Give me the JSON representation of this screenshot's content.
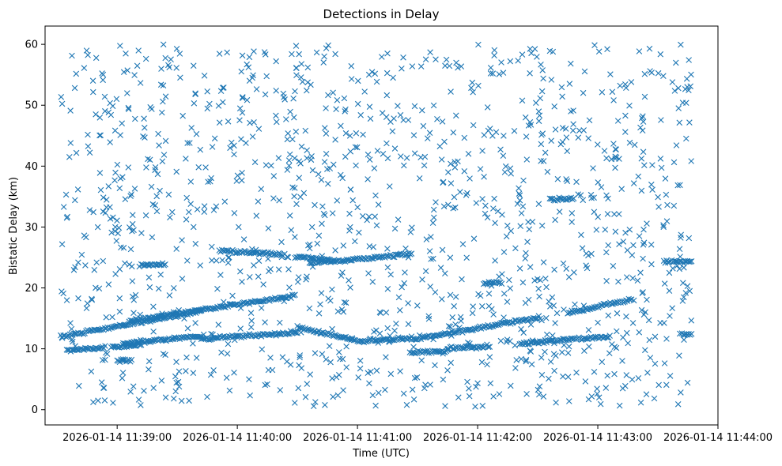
{
  "chart_data": {
    "type": "scatter",
    "title": "Detections in Delay",
    "xlabel": "Time (UTC)",
    "ylabel": "Bistatic Delay (km)",
    "marker": "x",
    "color": "#1f77b4",
    "xlim_minutes": [
      -0.6,
      5.0
    ],
    "ylim": [
      -2.5,
      63
    ],
    "x_ticks": [
      {
        "value": 0,
        "label": "2026-01-14 11:39:00"
      },
      {
        "value": 1,
        "label": "2026-01-14 11:40:00"
      },
      {
        "value": 2,
        "label": "2026-01-14 11:41:00"
      },
      {
        "value": 3,
        "label": "2026-01-14 11:42:00"
      },
      {
        "value": 4,
        "label": "2026-01-14 11:43:00"
      },
      {
        "value": 5,
        "label": "2026-01-14 11:44:00"
      }
    ],
    "y_ticks": [
      {
        "value": 0,
        "label": "0"
      },
      {
        "value": 10,
        "label": "10"
      },
      {
        "value": 20,
        "label": "20"
      },
      {
        "value": 30,
        "label": "30"
      },
      {
        "value": 40,
        "label": "40"
      },
      {
        "value": 50,
        "label": "50"
      },
      {
        "value": 60,
        "label": "60"
      }
    ],
    "x_unit": "minutes after 2026-01-14 11:39:00",
    "tracks": [
      {
        "x": [
          -0.47,
          0.7
        ],
        "y": [
          12.0,
          16.2
        ]
      },
      {
        "x": [
          0.05,
          0.7
        ],
        "y": [
          10.9,
          12.1
        ]
      },
      {
        "x": [
          0.7,
          1.5
        ],
        "y": [
          11.7,
          12.6
        ]
      },
      {
        "x": [
          0.1,
          1.48
        ],
        "y": [
          14.6,
          18.7
        ]
      },
      {
        "x": [
          1.5,
          1.98
        ],
        "y": [
          13.5,
          11.4
        ]
      },
      {
        "x": [
          2.0,
          2.45
        ],
        "y": [
          11.2,
          11.8
        ]
      },
      {
        "x": [
          2.45,
          3.52
        ],
        "y": [
          11.5,
          15.2
        ]
      },
      {
        "x": [
          2.45,
          2.75
        ],
        "y": [
          9.4,
          9.6
        ]
      },
      {
        "x": [
          2.75,
          3.1
        ],
        "y": [
          10.1,
          10.4
        ]
      },
      {
        "x": [
          3.35,
          4.1
        ],
        "y": [
          10.9,
          12.0
        ]
      },
      {
        "x": [
          3.75,
          4.28
        ],
        "y": [
          15.9,
          18.1
        ]
      },
      {
        "x": [
          1.6,
          2.45
        ],
        "y": [
          24.0,
          25.6
        ]
      },
      {
        "x": [
          1.48,
          1.78
        ],
        "y": [
          25.1,
          24.6
        ]
      },
      {
        "x": [
          0.85,
          1.38
        ],
        "y": [
          26.1,
          25.5
        ]
      },
      {
        "x": [
          -0.42,
          -0.1
        ],
        "y": [
          9.7,
          10.3
        ]
      },
      {
        "x": [
          -0.05,
          0.2
        ],
        "y": [
          10.3,
          10.6
        ]
      },
      {
        "x": [
          3.6,
          3.8
        ],
        "y": [
          34.6,
          34.6
        ]
      },
      {
        "x": [
          4.55,
          4.78
        ],
        "y": [
          24.3,
          24.3
        ]
      },
      {
        "x": [
          4.7,
          4.78
        ],
        "y": [
          12.4,
          12.4
        ]
      },
      {
        "x": [
          0.2,
          0.4
        ],
        "y": [
          23.8,
          23.8
        ]
      },
      {
        "x": [
          0.0,
          0.12
        ],
        "y": [
          8.0,
          8.1
        ]
      },
      {
        "x": [
          3.05,
          3.2
        ],
        "y": [
          20.8,
          20.9
        ]
      }
    ],
    "noise": {
      "count": 1250,
      "x_range": [
        -0.47,
        4.78
      ],
      "y_range": [
        0.5,
        60
      ],
      "seed": 20260114
    }
  }
}
